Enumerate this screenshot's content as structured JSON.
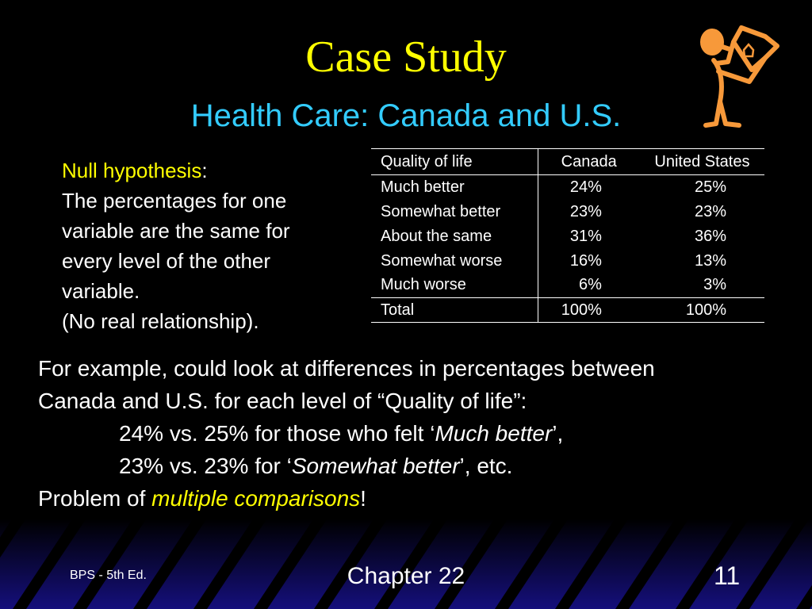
{
  "title": "Case Study",
  "subtitle": "Health Care:  Canada and U.S.",
  "left": {
    "null_label": "Null hypothesis",
    "colon": ":",
    "lines": [
      "The percentages for one",
      "variable are the same for",
      "every level of the other",
      "variable.",
      "(No real relationship)."
    ]
  },
  "table": {
    "headers": [
      "Quality of life",
      "Canada",
      "United States"
    ],
    "rows": [
      [
        "Much better",
        "24%",
        "25%"
      ],
      [
        "Somewhat better",
        "23%",
        "23%"
      ],
      [
        "About the same",
        "31%",
        "36%"
      ],
      [
        "Somewhat worse",
        "16%",
        "13%"
      ],
      [
        "Much worse",
        "6%",
        "3%"
      ]
    ],
    "total": [
      "Total",
      "100%",
      "100%"
    ]
  },
  "body": {
    "line1": "For example, could look at differences in percentages between",
    "line2": "Canada and U.S. for each level of “Quality of life”:",
    "line3a": "24% vs. 25% for those who felt ‘",
    "line3b": "Much better",
    "line3c": "’,",
    "line4a": "23% vs. 23% for ‘",
    "line4b": "Somewhat better",
    "line4c": "’, etc.",
    "line5a": "Problem of ",
    "line5b": "multiple comparisons",
    "line5c": "!"
  },
  "footer": {
    "left": "BPS - 5th Ed.",
    "center": "Chapter 22",
    "right": "11"
  },
  "colors": {
    "title": "#ffff00",
    "subtitle": "#33ccff",
    "figure": "#f7993a",
    "footer": "#150f7c"
  },
  "icons": {
    "figure": "person-holding-sign-clipart"
  }
}
